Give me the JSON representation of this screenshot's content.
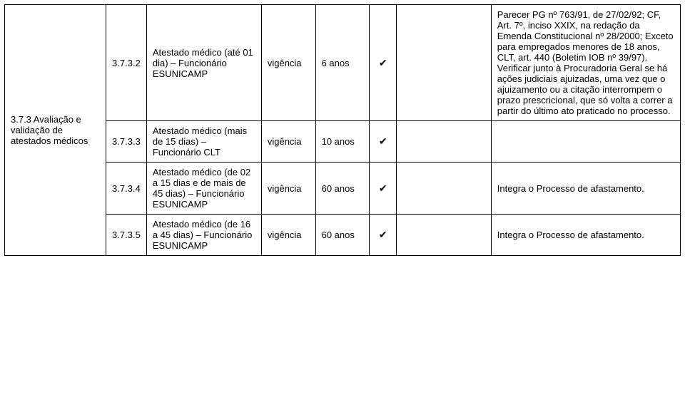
{
  "left": {
    "header": "3.7.3 Avaliação e validação de atestados médicos"
  },
  "rows": [
    {
      "num": "3.7.3.2",
      "desc": "Atestado médico (até 01 dia) – Funcionário ESUNICAMP",
      "col4": "vigência",
      "col5": "6 anos",
      "col6": "✔",
      "col7": "",
      "col8": "Parecer PG nº 763/91, de 27/02/92; CF, Art. 7º, inciso XXIX, na redação da Emenda Constitucional nº 28/2000; Exceto para empregados menores de 18 anos, CLT, art. 440 (Boletim IOB nº 39/97).\nVerificar junto à Procuradoria Geral se há ações judiciais ajuizadas, uma vez que o ajuizamento ou a citação interrompem o prazo prescricional, que só volta a correr a partir do último ato praticado no processo."
    },
    {
      "num": "3.7.3.3",
      "desc": "Atestado médico (mais de 15 dias) – Funcionário CLT",
      "col4": "vigência",
      "col5": "10 anos",
      "col6": "✔",
      "col7": "",
      "col8": ""
    },
    {
      "num": "3.7.3.4",
      "desc": "Atestado médico (de 02 a 15 dias e de mais de 45 dias) – Funcionário ESUNICAMP",
      "col4": "vigência",
      "col5": "60 anos",
      "col6": "✔",
      "col7": "",
      "col8": "Integra o Processo de afastamento."
    },
    {
      "num": "3.7.3.5",
      "desc": "Atestado médico (de 16 a 45 dias) – Funcionário ESUNICAMP",
      "col4": "vigência",
      "col5": "60 anos",
      "col6": "✔",
      "col7": "",
      "col8": "Integra o Processo de afastamento."
    }
  ]
}
